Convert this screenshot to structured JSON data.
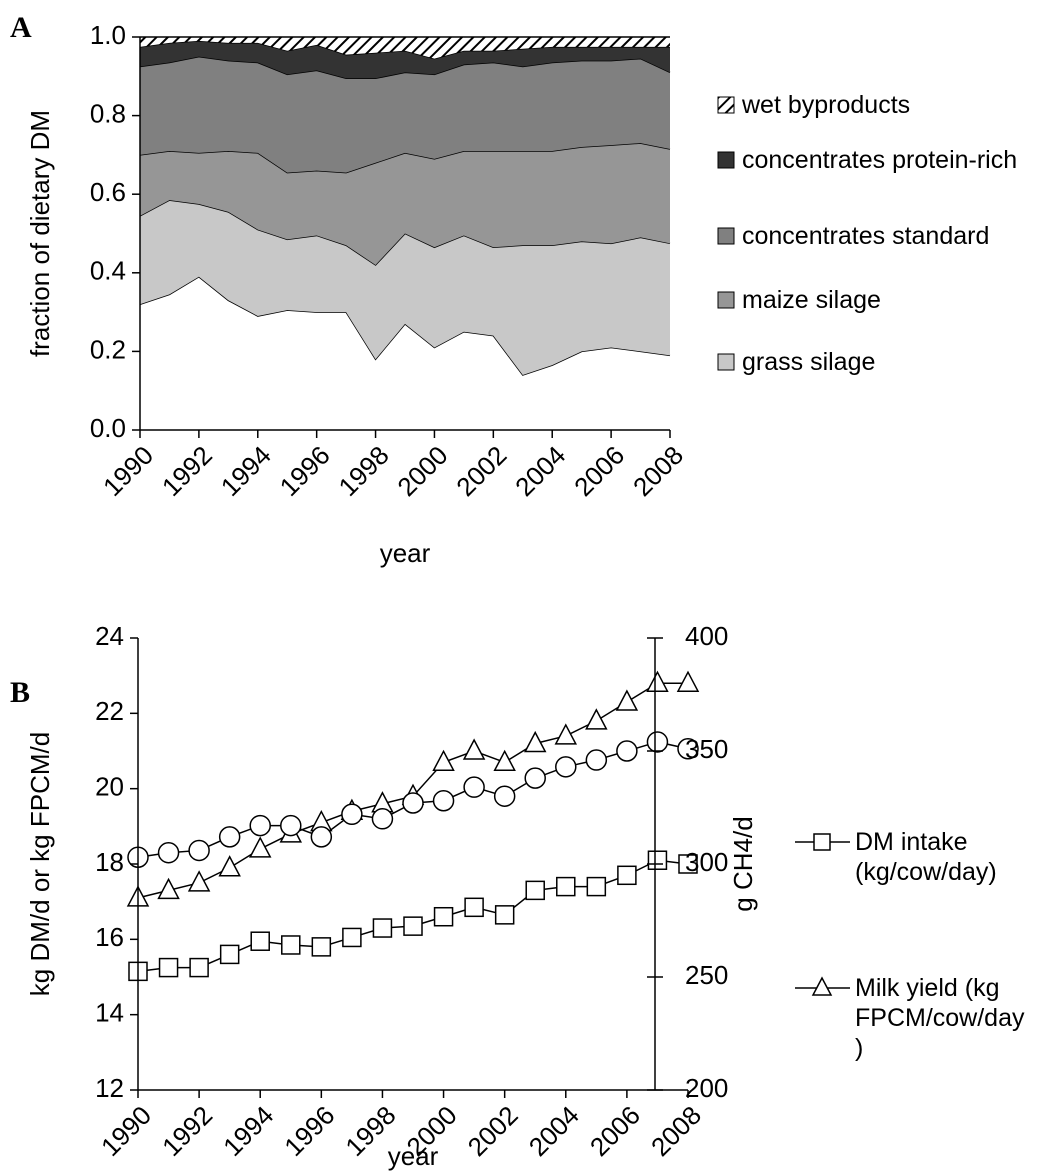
{
  "chart_data": [
    {
      "type": "area",
      "panel_label": "A",
      "y_label": "fraction of dietary DM",
      "x_label": "year",
      "x": [
        1990,
        1991,
        1992,
        1993,
        1994,
        1995,
        1996,
        1997,
        1998,
        1999,
        2000,
        2001,
        2002,
        2003,
        2004,
        2005,
        2006,
        2007,
        2008
      ],
      "xlim": [
        1990,
        2008
      ],
      "xticks": [
        1990,
        1992,
        1994,
        1996,
        1998,
        2000,
        2002,
        2004,
        2006,
        2008
      ],
      "ylim": [
        0,
        1
      ],
      "yticks": [
        {
          "value": 0,
          "label": "0.0"
        },
        0.2,
        0.4,
        0.6,
        0.8,
        {
          "value": 1,
          "label": "1.0"
        }
      ],
      "series": [
        {
          "color": "#ffffff",
          "values": [
            0.32,
            0.345,
            0.39,
            0.33,
            0.29,
            0.305,
            0.3,
            0.3,
            0.18,
            0.27,
            0.21,
            0.25,
            0.24,
            0.14,
            0.165,
            0.2,
            0.21,
            0.2,
            0.19
          ]
        },
        {
          "name": "grass silage",
          "color": "#c8c8c8",
          "values": [
            0.225,
            0.24,
            0.185,
            0.225,
            0.22,
            0.18,
            0.195,
            0.17,
            0.24,
            0.23,
            0.255,
            0.245,
            0.225,
            0.33,
            0.305,
            0.28,
            0.265,
            0.29,
            0.285
          ]
        },
        {
          "name": "maize silage",
          "color": "#969696",
          "values": [
            0.155,
            0.125,
            0.13,
            0.155,
            0.195,
            0.17,
            0.165,
            0.185,
            0.26,
            0.205,
            0.225,
            0.215,
            0.245,
            0.24,
            0.24,
            0.24,
            0.25,
            0.24,
            0.24
          ]
        },
        {
          "name": "concentrates standard",
          "color": "#808080",
          "values": [
            0.225,
            0.225,
            0.245,
            0.23,
            0.23,
            0.25,
            0.255,
            0.24,
            0.215,
            0.205,
            0.215,
            0.22,
            0.225,
            0.215,
            0.225,
            0.22,
            0.215,
            0.215,
            0.195
          ]
        },
        {
          "name": "concentrates protein-rich",
          "color": "#333333",
          "values": [
            0.05,
            0.05,
            0.04,
            0.045,
            0.05,
            0.06,
            0.065,
            0.06,
            0.065,
            0.055,
            0.04,
            0.035,
            0.03,
            0.045,
            0.04,
            0.035,
            0.035,
            0.03,
            0.065
          ]
        },
        {
          "name": "wet byproducts",
          "color": "#ffffff",
          "pattern": "hatch",
          "values": [
            0.025,
            0.015,
            0.01,
            0.015,
            0.015,
            0.035,
            0.02,
            0.045,
            0.04,
            0.035,
            0.055,
            0.035,
            0.035,
            0.03,
            0.025,
            0.025,
            0.025,
            0.025,
            0.025
          ]
        }
      ]
    },
    {
      "type": "line",
      "panel_label": "B",
      "y_label": "kg DM/d or kg FPCM/d",
      "y2_label": "g CH4/d",
      "x_label": "year",
      "x": [
        1990,
        1991,
        1992,
        1993,
        1994,
        1995,
        1996,
        1997,
        1998,
        1999,
        2000,
        2001,
        2002,
        2003,
        2004,
        2005,
        2006,
        2007,
        2008
      ],
      "xlim": [
        1990,
        2008
      ],
      "xticks": [
        1990,
        1992,
        1994,
        1996,
        1998,
        2000,
        2002,
        2004,
        2006,
        2008
      ],
      "ylim": [
        12,
        24
      ],
      "yticks": [
        12,
        14,
        16,
        18,
        20,
        22,
        24
      ],
      "y2lim": [
        200,
        400
      ],
      "y2ticks": [
        200,
        250,
        300,
        350,
        400
      ],
      "series": [
        {
          "name": "DM intake (kg/cow/day)",
          "color": "#000000",
          "marker": "square",
          "values": [
            15.15,
            15.25,
            15.25,
            15.6,
            15.95,
            15.85,
            15.8,
            16.05,
            16.3,
            16.35,
            16.6,
            16.85,
            16.65,
            17.3,
            17.4,
            17.4,
            17.7,
            18.1,
            18.0
          ]
        },
        {
          "name": "Milk yield (kg FPCM/cow/day )",
          "color": "#000000",
          "marker": "triangle",
          "values": [
            17.1,
            17.3,
            17.5,
            17.9,
            18.4,
            18.8,
            19.1,
            19.4,
            19.6,
            19.8,
            20.7,
            21.0,
            20.7,
            21.2,
            21.4,
            21.8,
            22.3,
            22.8,
            22.8
          ]
        },
        {
          "color": "#000000",
          "marker": "circle",
          "axis": "y2",
          "values": [
            303,
            305,
            306,
            312,
            317,
            317,
            312,
            322,
            320,
            327,
            328,
            334,
            330,
            338,
            343,
            346,
            350,
            354,
            351
          ]
        }
      ]
    }
  ]
}
